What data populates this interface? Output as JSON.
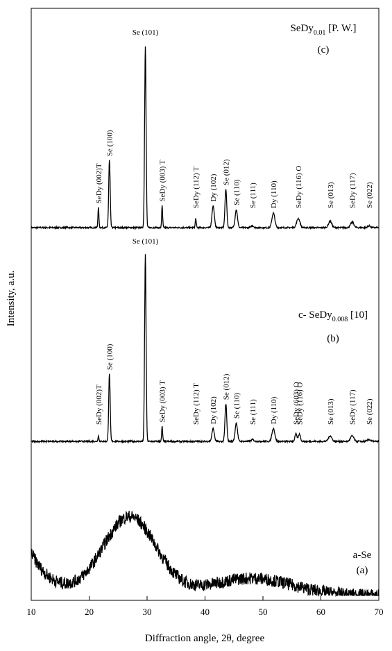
{
  "chart_data": {
    "type": "line",
    "xlabel": "Diffraction angle, 2θ, degree",
    "ylabel": "Intensity, a.u.",
    "xlim": [
      10,
      70
    ],
    "xticks": [
      10,
      20,
      30,
      40,
      50,
      60,
      70
    ],
    "grid": false,
    "series": [
      {
        "name": "SeDy0.01 [P. W.]",
        "label_main": "SeDy",
        "label_sub": "0.01",
        "label_tail": " [P. W.]",
        "label_letter": "(c)",
        "baseline": 0.0,
        "peaks": [
          {
            "x": 21.6,
            "h": 0.11,
            "w": 0.12,
            "label": "SeDy (002)T"
          },
          {
            "x": 23.5,
            "h": 0.37,
            "w": 0.18,
            "label": "Se (100)"
          },
          {
            "x": 29.7,
            "h": 1.0,
            "w": 0.18,
            "label": "Se (101)"
          },
          {
            "x": 32.6,
            "h": 0.12,
            "w": 0.12,
            "label": "SeDy (003) T"
          },
          {
            "x": 38.4,
            "h": 0.05,
            "w": 0.12,
            "label": "SeDy (112) T"
          },
          {
            "x": 41.4,
            "h": 0.12,
            "w": 0.28,
            "label": "Dy (102)"
          },
          {
            "x": 43.6,
            "h": 0.21,
            "w": 0.22,
            "label": "Se (012)"
          },
          {
            "x": 45.4,
            "h": 0.1,
            "w": 0.28,
            "label": "Se (110)"
          },
          {
            "x": 48.2,
            "h": 0.01,
            "w": 0.3,
            "label": "Se (111)"
          },
          {
            "x": 51.8,
            "h": 0.08,
            "w": 0.35,
            "label": "Dy (110)"
          },
          {
            "x": 56.1,
            "h": 0.05,
            "w": 0.4,
            "label": "SeDy (116) O"
          },
          {
            "x": 61.6,
            "h": 0.035,
            "w": 0.4,
            "label": "Se (013)"
          },
          {
            "x": 65.4,
            "h": 0.03,
            "w": 0.4,
            "label": "SeDy (117)"
          },
          {
            "x": 68.3,
            "h": 0.01,
            "w": 0.35,
            "label": "Se (022)"
          }
        ]
      },
      {
        "name": "c- SeDy0.008 [10]",
        "label_main": "c- SeDy",
        "label_sub": "0.008",
        "label_tail": " [10]",
        "label_letter": "(b)",
        "baseline": 0.0,
        "peaks": [
          {
            "x": 21.6,
            "h": 0.03,
            "w": 0.12,
            "label": "SeDy (002)T"
          },
          {
            "x": 23.5,
            "h": 0.36,
            "w": 0.18,
            "label": "Se (100)"
          },
          {
            "x": 29.7,
            "h": 1.0,
            "w": 0.18,
            "label": "Se (101)"
          },
          {
            "x": 32.6,
            "h": 0.08,
            "w": 0.12,
            "label": "SeDy (003) T"
          },
          {
            "x": 38.4,
            "h": 0.0,
            "w": 0.12,
            "label": "SeDy (112) T"
          },
          {
            "x": 41.4,
            "h": 0.07,
            "w": 0.28,
            "label": "Dy (102)"
          },
          {
            "x": 43.6,
            "h": 0.2,
            "w": 0.22,
            "label": "Se (012)"
          },
          {
            "x": 45.4,
            "h": 0.1,
            "w": 0.28,
            "label": "Se (110)"
          },
          {
            "x": 48.2,
            "h": 0.01,
            "w": 0.3,
            "label": "Se (111)"
          },
          {
            "x": 51.8,
            "h": 0.07,
            "w": 0.35,
            "label": "Dy (110)"
          },
          {
            "x": 55.7,
            "h": 0.04,
            "w": 0.25,
            "label": "SeDy (603) O"
          },
          {
            "x": 56.3,
            "h": 0.04,
            "w": 0.25,
            "label": "SeDy (116) O"
          },
          {
            "x": 61.6,
            "h": 0.03,
            "w": 0.4,
            "label": "Se (013)"
          },
          {
            "x": 65.4,
            "h": 0.03,
            "w": 0.4,
            "label": "SeDy (117)"
          },
          {
            "x": 68.3,
            "h": 0.01,
            "w": 0.35,
            "label": "Se (022)"
          }
        ]
      },
      {
        "name": "a-Se",
        "label_main": "a-Se",
        "label_sub": "",
        "label_tail": "",
        "label_letter": "(a)",
        "amorphous": true,
        "hump": {
          "center": 27.0,
          "width": 6.5,
          "height": 1.0
        },
        "edge_rise": 0.55
      }
    ]
  }
}
